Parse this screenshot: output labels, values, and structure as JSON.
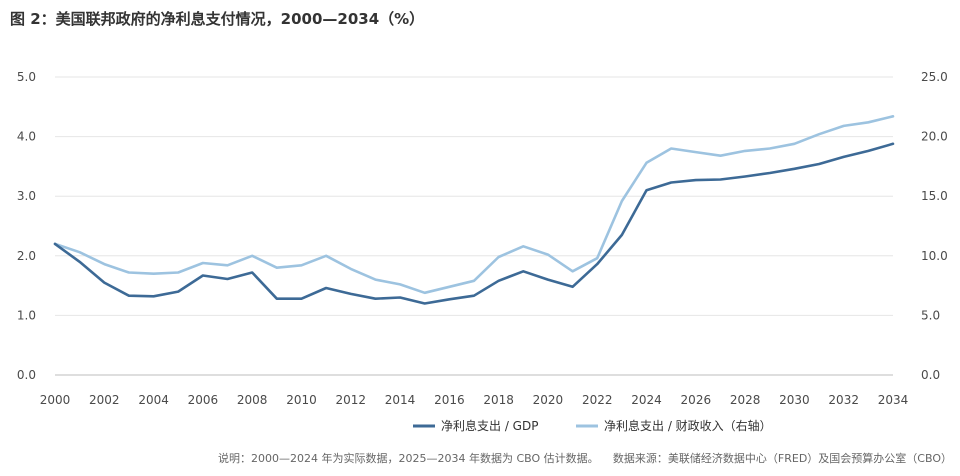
{
  "chart_data": {
    "type": "line",
    "title": "图 2：美国联邦政府的净利息支付情况，2000—2034（%）",
    "xlabel": "",
    "ylabel": "",
    "x": [
      2000,
      2001,
      2002,
      2003,
      2004,
      2005,
      2006,
      2007,
      2008,
      2009,
      2010,
      2011,
      2012,
      2013,
      2014,
      2015,
      2016,
      2017,
      2018,
      2019,
      2020,
      2021,
      2022,
      2023,
      2024,
      2025,
      2026,
      2027,
      2028,
      2029,
      2030,
      2031,
      2032,
      2033,
      2034
    ],
    "xlim": [
      2000,
      2034
    ],
    "x_ticks": [
      "2000",
      "2002",
      "2004",
      "2006",
      "2008",
      "2010",
      "2012",
      "2014",
      "2016",
      "2018",
      "2020",
      "2022",
      "2024",
      "2026",
      "2028",
      "2030",
      "2032",
      "2034"
    ],
    "ylim": [
      0,
      5
    ],
    "y_ticks": [
      "0.0",
      "1.0",
      "2.0",
      "3.0",
      "4.0",
      "5.0"
    ],
    "y2lim": [
      0,
      25
    ],
    "y2_ticks": [
      "0.0",
      "5.0",
      "10.0",
      "15.0",
      "20.0",
      "25.0"
    ],
    "grid": true,
    "legend_position": "bottom-center",
    "series": [
      {
        "name": "净利息支出 / GDP",
        "axis": "left",
        "color": "#3d6a96",
        "values": [
          2.2,
          1.9,
          1.55,
          1.33,
          1.32,
          1.4,
          1.67,
          1.61,
          1.72,
          1.28,
          1.28,
          1.46,
          1.36,
          1.28,
          1.3,
          1.2,
          1.27,
          1.33,
          1.58,
          1.74,
          1.6,
          1.48,
          1.86,
          2.35,
          3.1,
          3.23,
          3.27,
          3.28,
          3.33,
          3.39,
          3.46,
          3.54,
          3.66,
          3.76,
          3.88
        ]
      },
      {
        "name": "净利息支出 / 财政收入（右轴）",
        "axis": "right",
        "color": "#9dc3e0",
        "values": [
          11.0,
          10.3,
          9.3,
          8.6,
          8.5,
          8.6,
          9.4,
          9.2,
          10.0,
          9.0,
          9.2,
          10.0,
          8.9,
          8.0,
          7.6,
          6.9,
          7.4,
          7.9,
          9.9,
          10.8,
          10.1,
          8.7,
          9.8,
          14.6,
          17.8,
          19.0,
          18.7,
          18.4,
          18.8,
          19.0,
          19.4,
          20.2,
          20.9,
          21.2,
          21.7
        ]
      }
    ]
  },
  "footer": {
    "note": "说明：2000—2024 年为实际数据，2025—2034 年数据为 CBO 估计数据。",
    "source": "数据来源：美联储经济数据中心（FRED）及国会预算办公室（CBO）"
  }
}
